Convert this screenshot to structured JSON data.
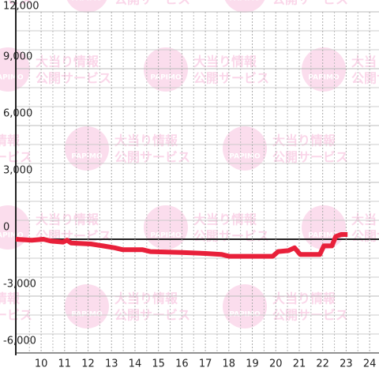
{
  "chart_data": {
    "type": "line",
    "watermark": {
      "logo": "PAPIMO",
      "line1": "大当り情報",
      "line2": "公開サービス"
    },
    "x": [
      8.92,
      9.6,
      10.1,
      10.44,
      10.94,
      11.1,
      11.28,
      12.12,
      12.63,
      13.13,
      13.47,
      14.31,
      14.65,
      15.99,
      17.0,
      17.68,
      18.01,
      19.87,
      20.1,
      20.54,
      20.8,
      21.04,
      21.88,
      22.05,
      22.39,
      22.56,
      22.79,
      23.06
    ],
    "series": [
      {
        "color": "#e8203a",
        "values": [
          0,
          -50,
          0,
          -100,
          -150,
          -50,
          -200,
          -250,
          -350,
          -450,
          -550,
          -550,
          -650,
          -700,
          -750,
          -800,
          -900,
          -900,
          -650,
          -600,
          -450,
          -800,
          -800,
          -350,
          -350,
          150,
          250,
          250
        ]
      }
    ],
    "xlim": [
      8.92,
      24.4
    ],
    "xticks": [
      10,
      11,
      12,
      13,
      14,
      15,
      16,
      17,
      18,
      19,
      20,
      21,
      22,
      23,
      24
    ],
    "x_minor_ticks": [
      9.5,
      10.5,
      11.5,
      12.5,
      13.5,
      14.5,
      15.5,
      16.5,
      17.5,
      18.5,
      19.5,
      20.5,
      21.5,
      22.5,
      23.5
    ],
    "ylim": [
      -6000,
      12000
    ],
    "yticks": [
      {
        "value": -6000,
        "label": "-6,000"
      },
      {
        "value": -3000,
        "label": "-3,000"
      },
      0,
      {
        "value": 3000,
        "label": "3,000"
      },
      {
        "value": 6000,
        "label": "6,000"
      },
      {
        "value": 9000,
        "label": "9,000"
      },
      {
        "value": 12000,
        "label": "12,000"
      }
    ],
    "y_minor_ticks": [
      -5000,
      -4000,
      -2000,
      -1000,
      1000,
      2000,
      4000,
      5000,
      7000,
      8000,
      10000,
      11000
    ],
    "grid": true
  }
}
